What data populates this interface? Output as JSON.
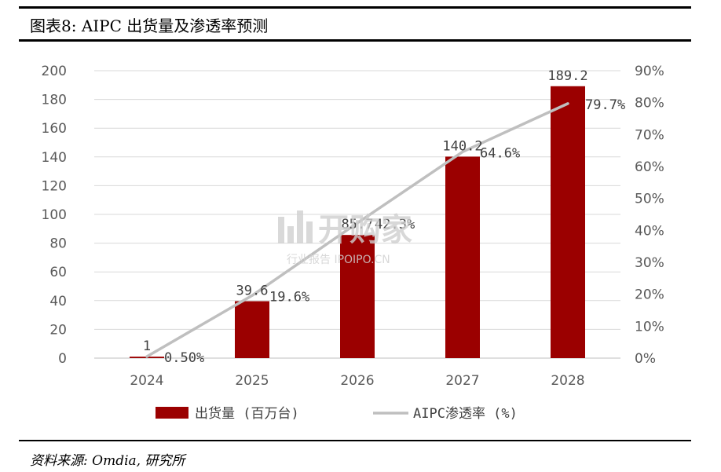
{
  "figure": {
    "title": "图表8:  AIPC 出货量及渗透率预测",
    "source": "资料来源: Omdia, 研究所"
  },
  "watermark": {
    "main": "开购家",
    "sub": "行业报告 IPOIPO.CN"
  },
  "colors": {
    "bar": "#9b0000",
    "line": "#bfbfbf",
    "grid": "#d9d9d9"
  },
  "chart_data": {
    "type": "bar",
    "categories": [
      "2024",
      "2025",
      "2026",
      "2027",
      "2028"
    ],
    "series": [
      {
        "name": "出货量 (百万台)",
        "type": "bar",
        "axis": "left",
        "values": [
          1,
          39.6,
          85.7,
          140.2,
          189.2
        ],
        "labels": [
          "1",
          "39.6",
          "85.7",
          "140.2",
          "189.2"
        ]
      },
      {
        "name": "AIPC渗透率 (%)",
        "type": "line",
        "axis": "right",
        "values": [
          0.5,
          19.6,
          42.3,
          64.6,
          79.7
        ],
        "labels": [
          "0.50%",
          "19.6%",
          "42.3%",
          "64.6%",
          "79.7%"
        ]
      }
    ],
    "y_left": {
      "min": 0,
      "max": 200,
      "step": 20
    },
    "y_right": {
      "min": 0,
      "max": 90,
      "step": 10,
      "format": "percent"
    },
    "grid": true,
    "legend_position": "bottom"
  }
}
